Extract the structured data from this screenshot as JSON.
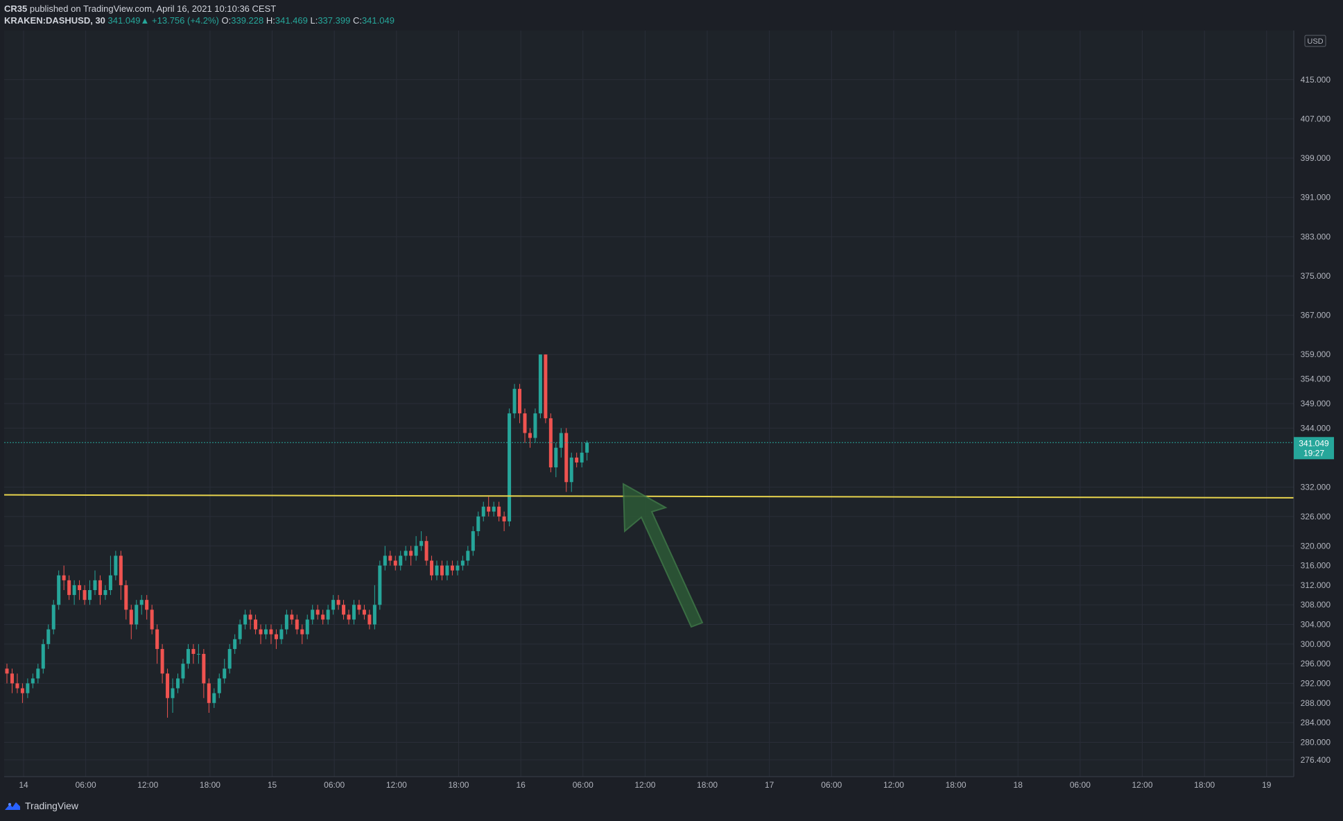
{
  "header": {
    "author": "CR35",
    "published_text": " published on TradingView.com, April 16, 2021 10:10:36 CEST",
    "symbol": "KRAKEN:DASHUSD, 30",
    "last": "341.049",
    "change": "▲ +13.756 (+4.2%)",
    "o_label": "O:",
    "o_value": "339.228",
    "h_label": "H:",
    "h_value": "341.469",
    "l_label": "L:",
    "l_value": "337.399",
    "c_label": "C:",
    "c_value": "341.049"
  },
  "footer": {
    "brand": "TradingView",
    "logo_icon": "tradingview-logo-icon"
  },
  "colors": {
    "background": "#1c1f26",
    "grid": "#2a2e39",
    "up": "#26a69a",
    "down": "#ef5350",
    "support_line": "#e8d44d",
    "price_line": "#26a69a",
    "arrow_fill": "#2d5a36",
    "arrow_stroke": "#3f7a48"
  },
  "chart_data": {
    "type": "candlestick",
    "currency": "USD",
    "ylim": [
      273,
      425
    ],
    "y_ticks": [
      "415.000",
      "407.000",
      "399.000",
      "391.000",
      "383.000",
      "375.000",
      "367.000",
      "359.000",
      "354.000",
      "349.000",
      "344.000",
      "332.000",
      "326.000",
      "320.000",
      "316.000",
      "312.000",
      "308.000",
      "304.000",
      "300.000",
      "296.000",
      "292.000",
      "288.000",
      "284.000",
      "280.000",
      "276.400"
    ],
    "x_ticks": [
      "14",
      "06:00",
      "12:00",
      "18:00",
      "15",
      "06:00",
      "12:00",
      "18:00",
      "16",
      "06:00",
      "12:00",
      "18:00",
      "17",
      "06:00",
      "12:00",
      "18:00",
      "18",
      "06:00",
      "12:00",
      "18:00",
      "19"
    ],
    "x_tick_index": [
      0,
      12,
      24,
      36,
      48,
      60,
      72,
      84,
      96,
      108,
      120,
      132,
      144,
      156,
      168,
      180,
      192,
      204,
      216,
      228,
      240
    ],
    "last_price": {
      "value": "341.049",
      "countdown": "19:27",
      "y": 341.049
    },
    "support_line": {
      "start_y": 330.4,
      "end_y": 329.8
    },
    "annotation": "arrow pointing up at support line",
    "candles": [
      [
        295,
        294,
        296,
        292
      ],
      [
        294,
        292,
        295,
        290
      ],
      [
        292,
        291,
        294,
        290
      ],
      [
        291,
        290,
        292,
        288
      ],
      [
        290,
        292,
        293,
        289
      ],
      [
        292,
        293,
        294,
        291
      ],
      [
        293,
        295,
        296,
        292
      ],
      [
        295,
        300,
        301,
        294
      ],
      [
        300,
        303,
        304,
        299
      ],
      [
        303,
        308,
        309,
        302
      ],
      [
        308,
        314,
        315,
        307
      ],
      [
        314,
        313,
        316,
        311
      ],
      [
        313,
        310,
        314,
        309
      ],
      [
        310,
        312,
        313,
        308
      ],
      [
        312,
        311,
        313,
        309
      ],
      [
        311,
        309,
        312,
        308
      ],
      [
        309,
        311,
        313,
        308
      ],
      [
        311,
        313,
        315,
        310
      ],
      [
        313,
        310,
        314,
        308
      ],
      [
        310,
        311,
        312,
        309
      ],
      [
        311,
        314,
        318,
        310
      ],
      [
        314,
        318,
        319,
        313
      ],
      [
        318,
        312,
        319,
        309
      ],
      [
        312,
        307,
        313,
        305
      ],
      [
        307,
        304,
        308,
        301
      ],
      [
        304,
        308,
        309,
        303
      ],
      [
        308,
        309,
        310,
        306
      ],
      [
        309,
        307,
        310,
        305
      ],
      [
        307,
        303,
        308,
        302
      ],
      [
        303,
        299,
        304,
        296
      ],
      [
        299,
        294,
        300,
        292
      ],
      [
        294,
        289,
        295,
        285
      ],
      [
        289,
        291,
        293,
        286
      ],
      [
        291,
        293,
        294,
        290
      ],
      [
        293,
        296,
        297,
        292
      ],
      [
        296,
        299,
        300,
        295
      ],
      [
        299,
        298,
        300,
        296
      ],
      [
        298,
        298,
        300,
        296
      ],
      [
        298,
        292,
        299,
        289
      ],
      [
        292,
        288,
        293,
        286
      ],
      [
        288,
        290,
        291,
        287
      ],
      [
        290,
        293,
        294,
        289
      ],
      [
        293,
        295,
        297,
        292
      ],
      [
        295,
        299,
        300,
        294
      ],
      [
        299,
        301,
        302,
        298
      ],
      [
        301,
        304,
        305,
        300
      ],
      [
        304,
        306,
        307,
        303
      ],
      [
        306,
        305,
        307,
        303
      ],
      [
        305,
        303,
        306,
        302
      ],
      [
        303,
        302,
        304,
        300
      ],
      [
        302,
        303,
        304,
        301
      ],
      [
        303,
        302,
        304,
        300
      ],
      [
        302,
        301,
        303,
        299
      ],
      [
        301,
        303,
        304,
        300
      ],
      [
        303,
        306,
        307,
        302
      ],
      [
        306,
        305,
        307,
        304
      ],
      [
        305,
        303,
        306,
        302
      ],
      [
        303,
        302,
        304,
        300
      ],
      [
        302,
        305,
        306,
        301
      ],
      [
        305,
        307,
        308,
        304
      ],
      [
        307,
        306,
        308,
        305
      ],
      [
        306,
        305,
        307,
        304
      ],
      [
        305,
        307,
        308,
        304
      ],
      [
        307,
        309,
        310,
        306
      ],
      [
        309,
        308,
        310,
        307
      ],
      [
        308,
        306,
        309,
        305
      ],
      [
        306,
        305,
        307,
        304
      ],
      [
        305,
        308,
        309,
        304
      ],
      [
        308,
        307,
        309,
        306
      ],
      [
        307,
        306,
        308,
        305
      ],
      [
        306,
        304,
        307,
        303
      ],
      [
        304,
        308,
        312,
        303
      ],
      [
        308,
        316,
        317,
        307
      ],
      [
        316,
        318,
        320,
        315
      ],
      [
        318,
        317,
        319,
        316
      ],
      [
        317,
        316,
        318,
        315
      ],
      [
        316,
        318,
        319,
        315
      ],
      [
        318,
        319,
        320,
        317
      ],
      [
        319,
        318,
        320,
        316
      ],
      [
        318,
        320,
        322,
        317
      ],
      [
        320,
        321,
        323,
        319
      ],
      [
        321,
        317,
        322,
        316
      ],
      [
        317,
        314,
        318,
        313
      ],
      [
        314,
        316,
        317,
        313
      ],
      [
        316,
        314,
        317,
        313
      ],
      [
        314,
        316,
        317,
        313
      ],
      [
        316,
        315,
        317,
        314
      ],
      [
        315,
        316,
        317,
        314
      ],
      [
        316,
        317,
        318,
        315
      ],
      [
        317,
        319,
        320,
        316
      ],
      [
        319,
        323,
        324,
        318
      ],
      [
        323,
        326,
        327,
        322
      ],
      [
        326,
        328,
        329,
        325
      ],
      [
        328,
        327,
        330,
        326
      ],
      [
        327,
        328,
        329,
        326
      ],
      [
        328,
        326,
        329,
        325
      ],
      [
        326,
        325,
        327,
        323
      ],
      [
        325,
        347,
        348,
        324
      ],
      [
        347,
        352,
        353,
        346
      ],
      [
        352,
        347,
        353,
        345
      ],
      [
        347,
        343,
        348,
        341
      ],
      [
        343,
        342,
        344,
        340
      ],
      [
        342,
        347,
        348,
        341
      ],
      [
        347,
        359,
        359,
        346
      ],
      [
        359,
        346,
        359,
        345
      ],
      [
        346,
        336,
        347,
        335
      ],
      [
        336,
        340,
        341,
        334
      ],
      [
        340,
        343,
        344,
        338
      ],
      [
        343,
        333,
        344,
        331
      ],
      [
        333,
        338,
        339,
        331
      ],
      [
        338,
        337,
        339,
        336
      ],
      [
        337,
        339,
        341,
        336
      ],
      [
        339,
        341.049,
        341.469,
        337.399
      ]
    ]
  }
}
